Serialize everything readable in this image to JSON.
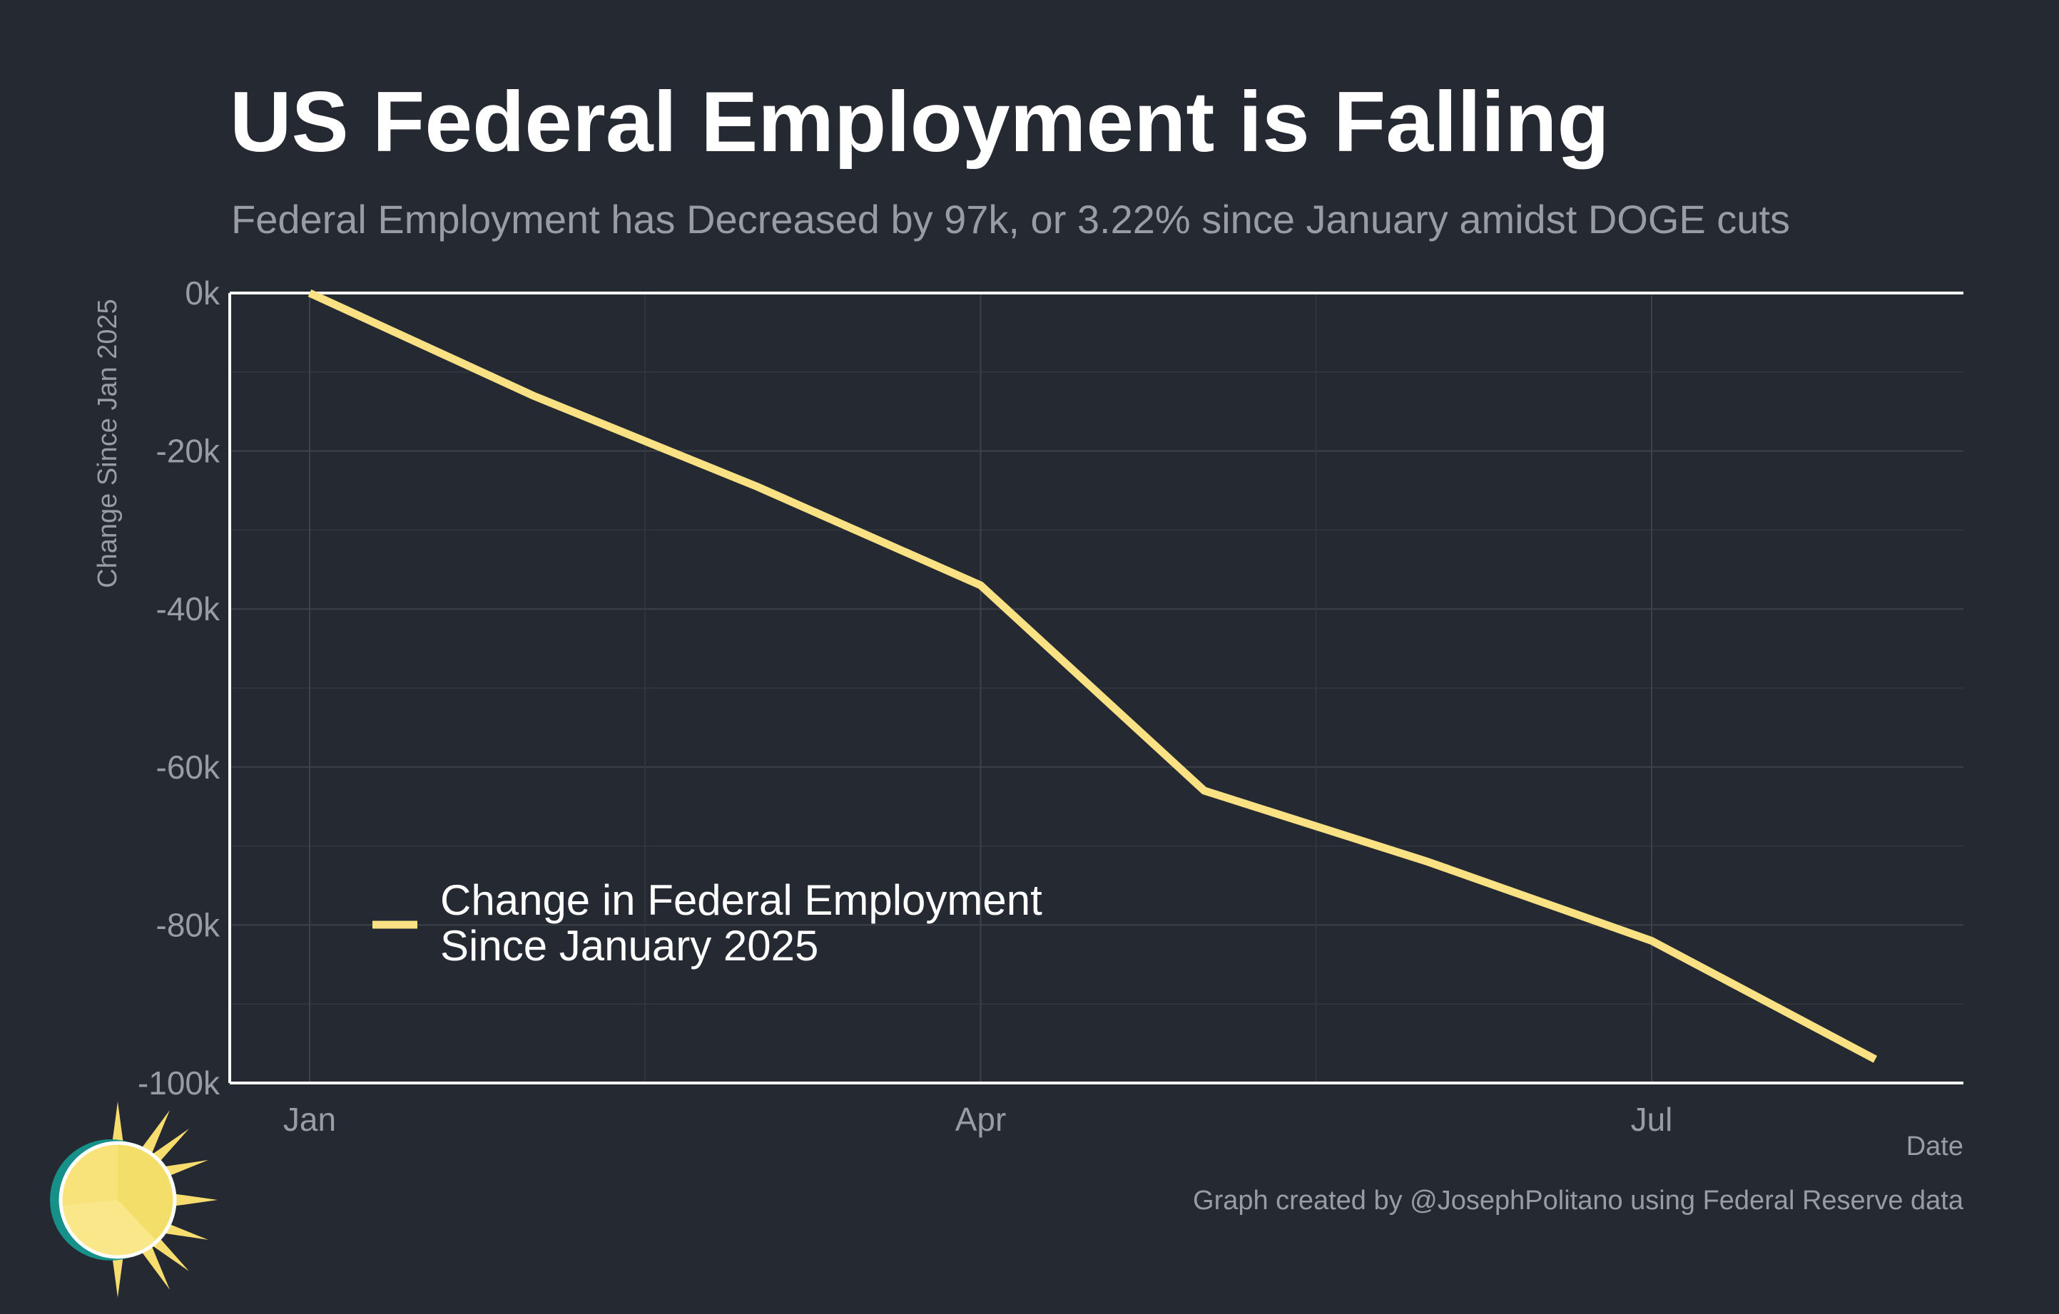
{
  "header": {
    "title": "US Federal Employment is Falling",
    "subtitle": "Federal Employment has Decreased by 97k, or 3.22% since January amidst DOGE cuts"
  },
  "footer": {
    "caption": "Graph created by @JosephPolitano using Federal Reserve data"
  },
  "logo": {
    "icon": "sun-logo-icon"
  },
  "colors": {
    "background": "#252932",
    "line": "#f9e184",
    "text": "#9a9ca3",
    "axis": "#ffffff"
  },
  "chart_data": {
    "type": "line",
    "title": "US Federal Employment is Falling",
    "subtitle": "Federal Employment has Decreased by 97k, or 3.22% since January amidst DOGE cuts",
    "xlabel": "Date",
    "ylabel": "Change Since Jan 2025",
    "x": [
      "2025-01",
      "2025-02",
      "2025-03",
      "2025-04",
      "2025-05",
      "2025-06",
      "2025-07",
      "2025-08"
    ],
    "series": [
      {
        "name": "Change in Federal Employment Since January 2025",
        "values": [
          0,
          -13,
          -24.5,
          -37,
          -63,
          -72,
          -82,
          -97
        ]
      }
    ],
    "y_unit": "thousands",
    "ylim": [
      -100,
      0
    ],
    "yticks": [
      0,
      -20,
      -40,
      -60,
      -80,
      -100
    ],
    "ytick_labels": [
      "0k",
      "-20k",
      "-40k",
      "-60k",
      "-80k",
      "-100k"
    ],
    "xticks": [
      "2025-01",
      "2025-04",
      "2025-07"
    ],
    "xtick_labels": [
      "Jan",
      "Apr",
      "Jul"
    ],
    "legend_labels": [
      "Change in Federal Employment",
      "Since January 2025"
    ],
    "legend_position": "bottom-left",
    "grid": true
  }
}
